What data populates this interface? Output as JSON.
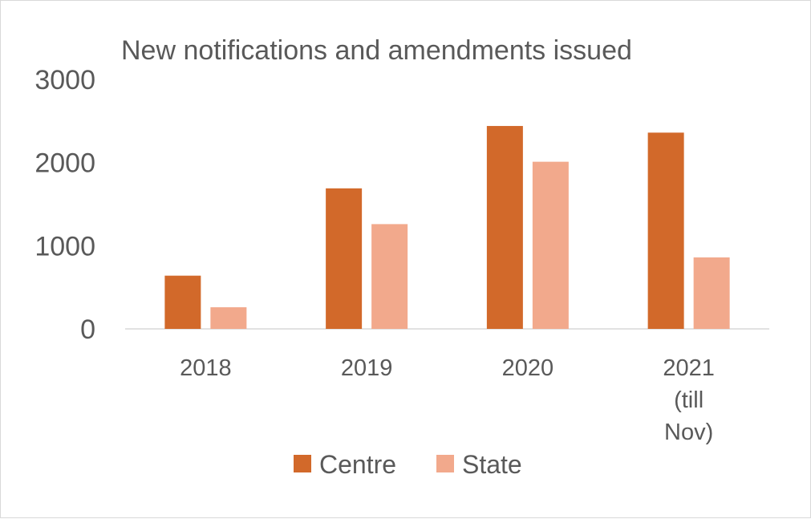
{
  "chart_data": {
    "type": "bar",
    "title": "New notifications and amendments issued",
    "xlabel": "",
    "ylabel": "",
    "categories": [
      "2018",
      "2019",
      "2020",
      "2021 (till Nov)"
    ],
    "series": [
      {
        "name": "Centre",
        "color": "#d2692a",
        "values": [
          640,
          1690,
          2440,
          2360
        ]
      },
      {
        "name": "State",
        "color": "#f2a98c",
        "values": [
          260,
          1260,
          2010,
          860
        ]
      }
    ],
    "ylim": [
      0,
      3000
    ],
    "yticks": [
      "0",
      "1000",
      "2000",
      "3000"
    ],
    "grid": false,
    "legend_position": "bottom"
  }
}
